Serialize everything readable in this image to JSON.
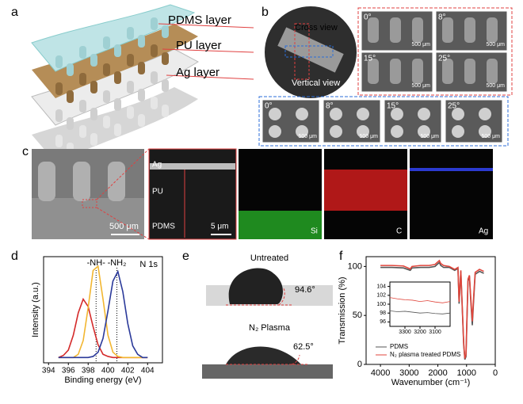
{
  "figure": {
    "panel_labels": [
      "a",
      "b",
      "c",
      "d",
      "e",
      "f"
    ],
    "a": {
      "layers": [
        "PDMS layer",
        "PU layer",
        "Ag layer"
      ]
    },
    "b": {
      "photo_labels": [
        "Cross view",
        "Vertical view"
      ],
      "cross_images": [
        {
          "angle": "0°",
          "scale": "500 μm"
        },
        {
          "angle": "8°",
          "scale": "500 μm"
        },
        {
          "angle": "15°",
          "scale": "500 μm"
        },
        {
          "angle": "25°",
          "scale": "500 μm"
        }
      ],
      "vertical_images": [
        {
          "angle": "0°",
          "scale": "500 μm"
        },
        {
          "angle": "8°",
          "scale": "500 μm"
        },
        {
          "angle": "15°",
          "scale": "500 μm"
        },
        {
          "angle": "25°",
          "scale": "500 μm"
        }
      ]
    },
    "c": {
      "sem_scale": "500 μm",
      "layers": [
        "Ag",
        "PU",
        "PDMS"
      ],
      "cross_scale": "5 μm",
      "maps": [
        "Si",
        "C",
        "Ag"
      ]
    },
    "e": {
      "conditions": [
        {
          "label": "Untreated",
          "angle": "94.6°"
        },
        {
          "label": "N₂ Plasma",
          "angle": "62.5°"
        }
      ]
    }
  },
  "chart_data": [
    {
      "type": "line",
      "xlabel": "Binding energy (eV)",
      "ylabel": "Intensity (a.u.)",
      "xlim": [
        393.5,
        405.5
      ],
      "xticks": [
        394,
        396,
        398,
        400,
        402,
        404
      ],
      "ylim": [
        0,
        1
      ],
      "x": [
        395,
        395.5,
        396,
        396.5,
        397,
        397.5,
        398,
        398.5,
        399,
        399.5,
        400,
        400.5,
        401,
        401.5,
        402,
        402.5,
        403,
        403.5,
        404
      ],
      "series": [
        {
          "color": "#d42a2a",
          "values": [
            0.05,
            0.07,
            0.12,
            0.26,
            0.47,
            0.6,
            0.53,
            0.34,
            0.17,
            0.08,
            0.06,
            0.05,
            0.05,
            0.05,
            0.05,
            0.05,
            0.05,
            0.05,
            0.05
          ]
        },
        {
          "color": "#f2b630",
          "values": [
            0.05,
            0.05,
            0.05,
            0.05,
            0.08,
            0.21,
            0.52,
            0.87,
            0.91,
            0.6,
            0.26,
            0.1,
            0.06,
            0.05,
            0.05,
            0.05,
            0.05,
            0.05,
            0.05
          ]
        },
        {
          "color": "#2b3a9a",
          "values": [
            0.05,
            0.05,
            0.05,
            0.05,
            0.05,
            0.05,
            0.05,
            0.06,
            0.1,
            0.23,
            0.49,
            0.77,
            0.86,
            0.67,
            0.37,
            0.16,
            0.08,
            0.05,
            0.05
          ]
        }
      ],
      "reference_lines": [
        398.8,
        400.9
      ],
      "annotations": [
        "-NH-",
        "-NH₂",
        "N 1s"
      ]
    },
    {
      "type": "line",
      "xlabel": "Wavenumber (cm⁻¹)",
      "ylabel": "Transmission (%)",
      "xlim": [
        4500,
        0
      ],
      "xticks": [
        4000,
        3000,
        2000,
        1000,
        0
      ],
      "ylim": [
        0,
        110
      ],
      "yticks": [
        0,
        50,
        100
      ],
      "legend": "lower left",
      "x": [
        4000,
        3600,
        3200,
        2962,
        2900,
        2600,
        2300,
        2100,
        1950,
        1900,
        1800,
        1600,
        1413,
        1300,
        1260,
        1200,
        1100,
        1060,
        1020,
        1000,
        950,
        900,
        864,
        800,
        760,
        700,
        550,
        400
      ],
      "series": [
        {
          "name": "PDMS",
          "color": "#555555",
          "values": [
            99,
            99,
            98.5,
            96,
            98.5,
            99,
            99,
            100,
            104,
            101,
            99,
            99,
            96,
            98,
            62,
            95,
            20,
            5,
            8,
            30,
            85,
            90,
            70,
            40,
            62,
            92,
            95,
            93
          ]
        },
        {
          "name": "N₂ plasma treated PDMS",
          "color": "#e0463c",
          "values": [
            101,
            101,
            100.5,
            97.5,
            100,
            101,
            101,
            102,
            106,
            103,
            101,
            100,
            97,
            99,
            64,
            96,
            22,
            6,
            10,
            33,
            87,
            91,
            73,
            44,
            66,
            94,
            97,
            95
          ]
        }
      ]
    },
    {
      "type": "line",
      "xlim": [
        3400,
        3000
      ],
      "xticks": [
        3300,
        3200,
        3100
      ],
      "ylim": [
        95,
        105
      ],
      "yticks": [
        96,
        98,
        100,
        102,
        104
      ],
      "x": [
        3400,
        3350,
        3300,
        3250,
        3200,
        3150,
        3100,
        3050,
        3000
      ],
      "series": [
        {
          "color": "#555555",
          "values": [
            98.5,
            98.3,
            98.4,
            98.2,
            98.0,
            98.1,
            97.9,
            97.8,
            98.0
          ]
        },
        {
          "color": "#e0463c",
          "values": [
            101.5,
            101.2,
            101,
            100.9,
            100.6,
            100.8,
            100.5,
            100.3,
            100.6
          ]
        }
      ]
    }
  ]
}
